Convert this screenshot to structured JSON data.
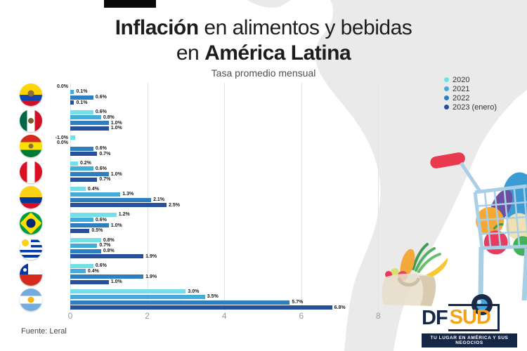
{
  "title": {
    "line1_bold": "Inflación",
    "line1_rest": " en alimentos y bebidas",
    "line2_rest": "en ",
    "line2_bold": "América Latina"
  },
  "subtitle": "Tasa promedio mensual",
  "legend": {
    "items": [
      {
        "label": "2020",
        "color": "#74dfe6"
      },
      {
        "label": "2021",
        "color": "#43acd9"
      },
      {
        "label": "2022",
        "color": "#2d7fc0"
      },
      {
        "label": "2023 (enero)",
        "color": "#274f9a"
      }
    ]
  },
  "source": "Fuente: Leral",
  "logo": {
    "df": "DF",
    "sud": "SUD",
    "tagline": "TU LUGAR EN AMÉRICA Y SUS NEGOCIOS"
  },
  "chart_data": {
    "type": "bar",
    "orientation": "horizontal",
    "unit": "%",
    "title": "Inflación en alimentos y bebidas en América Latina",
    "subtitle": "Tasa promedio mensual",
    "categories": [
      "Ecuador",
      "México",
      "Bolivia",
      "Perú",
      "Colombia",
      "Brasil",
      "Uruguay",
      "Chile",
      "Argentina"
    ],
    "flag_ids": [
      "ecuador",
      "mexico",
      "bolivia",
      "peru",
      "colombia",
      "brasil",
      "uruguay",
      "chile",
      "argentina"
    ],
    "series": [
      {
        "name": "2020",
        "color": "#74dfe6",
        "values": [
          0.0,
          0.6,
          -1.0,
          0.2,
          0.4,
          1.2,
          0.8,
          0.6,
          3.0
        ]
      },
      {
        "name": "2021",
        "color": "#43acd9",
        "values": [
          0.1,
          0.8,
          0.0,
          0.6,
          1.3,
          0.6,
          0.7,
          0.4,
          3.5
        ]
      },
      {
        "name": "2022",
        "color": "#2d7fc0",
        "values": [
          0.6,
          1.0,
          0.6,
          1.0,
          2.1,
          1.0,
          0.8,
          1.9,
          5.7
        ]
      },
      {
        "name": "2023 (enero)",
        "color": "#274f9a",
        "values": [
          0.1,
          1.0,
          0.7,
          0.7,
          2.5,
          0.5,
          1.9,
          1.0,
          6.8
        ]
      }
    ],
    "labels": [
      [
        "0.0%",
        "0.1%",
        "0.6%",
        "0.1%"
      ],
      [
        "0.6%",
        "0.8%",
        "1.0%",
        "1.0%"
      ],
      [
        "-1.0%",
        "0.0%",
        "0.6%",
        "0.7%"
      ],
      [
        "0.2%",
        "0.6%",
        "1.0%",
        "0.7%"
      ],
      [
        "0.4%",
        "1.3%",
        "2.1%",
        "2.5%"
      ],
      [
        "1.2%",
        "0.6%",
        "1.0%",
        "0.5%"
      ],
      [
        "0.8%",
        "0.7%",
        "0.8%",
        "1.9%"
      ],
      [
        "0.6%",
        "0.4%",
        "1.9%",
        "1.0%"
      ],
      [
        "3.0%",
        "3.5%",
        "5.7%",
        "6.8%"
      ]
    ],
    "x_ticks": [
      0,
      2,
      4,
      6,
      8
    ],
    "xlim": [
      0,
      8
    ],
    "grid": true,
    "legend_position": "top-right"
  }
}
